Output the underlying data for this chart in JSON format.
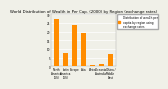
{
  "title": "World Distribution of Wealth in Per Cap. (2000) by Region (exchange rates)",
  "categories": [
    "North\nAmerica\n(US)",
    "Latin\nAmerica\n(US)",
    "Europe",
    "Asia",
    "Africa",
    "Oceania /\nAustralia",
    "China /\nMiddle\nEast"
  ],
  "values": [
    27.5,
    7.5,
    24.0,
    19.0,
    0.5,
    1.5,
    7.0
  ],
  "bar_color": "#FF8C00",
  "legend_label": "Distribution of wealth per\ncapita by region using\nexchange rates",
  "legend_color": "#FF8C00",
  "ylim": [
    0,
    30
  ],
  "yticks": [
    0,
    5,
    10,
    15,
    20,
    25,
    30
  ],
  "background_color": "#f0f0e8",
  "grid_color": "#ffffff",
  "title_fontsize": 2.8,
  "tick_fontsize": 2.0,
  "legend_fontsize": 2.0
}
